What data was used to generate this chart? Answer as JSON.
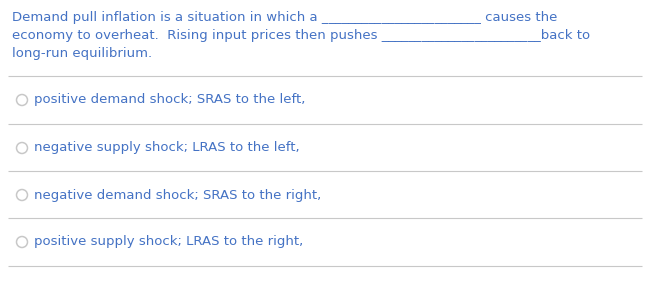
{
  "bg_color": "#ffffff",
  "text_color": "#4472c4",
  "line_color": "#c8c8c8",
  "paragraph": [
    "Demand pull inflation is a situation in which a ________________________ causes the",
    "economy to overheat.  Rising input prices then pushes ________________________back to",
    "long-run equilibrium."
  ],
  "options": [
    "positive demand shock; SRAS to the left,",
    "negative supply shock; LRAS to the left,",
    "negative demand shock; SRAS to the right,",
    "positive supply shock; LRAS to the right,"
  ],
  "font_size_para": 9.5,
  "font_size_option": 9.5,
  "font_family": "DejaVu Sans"
}
